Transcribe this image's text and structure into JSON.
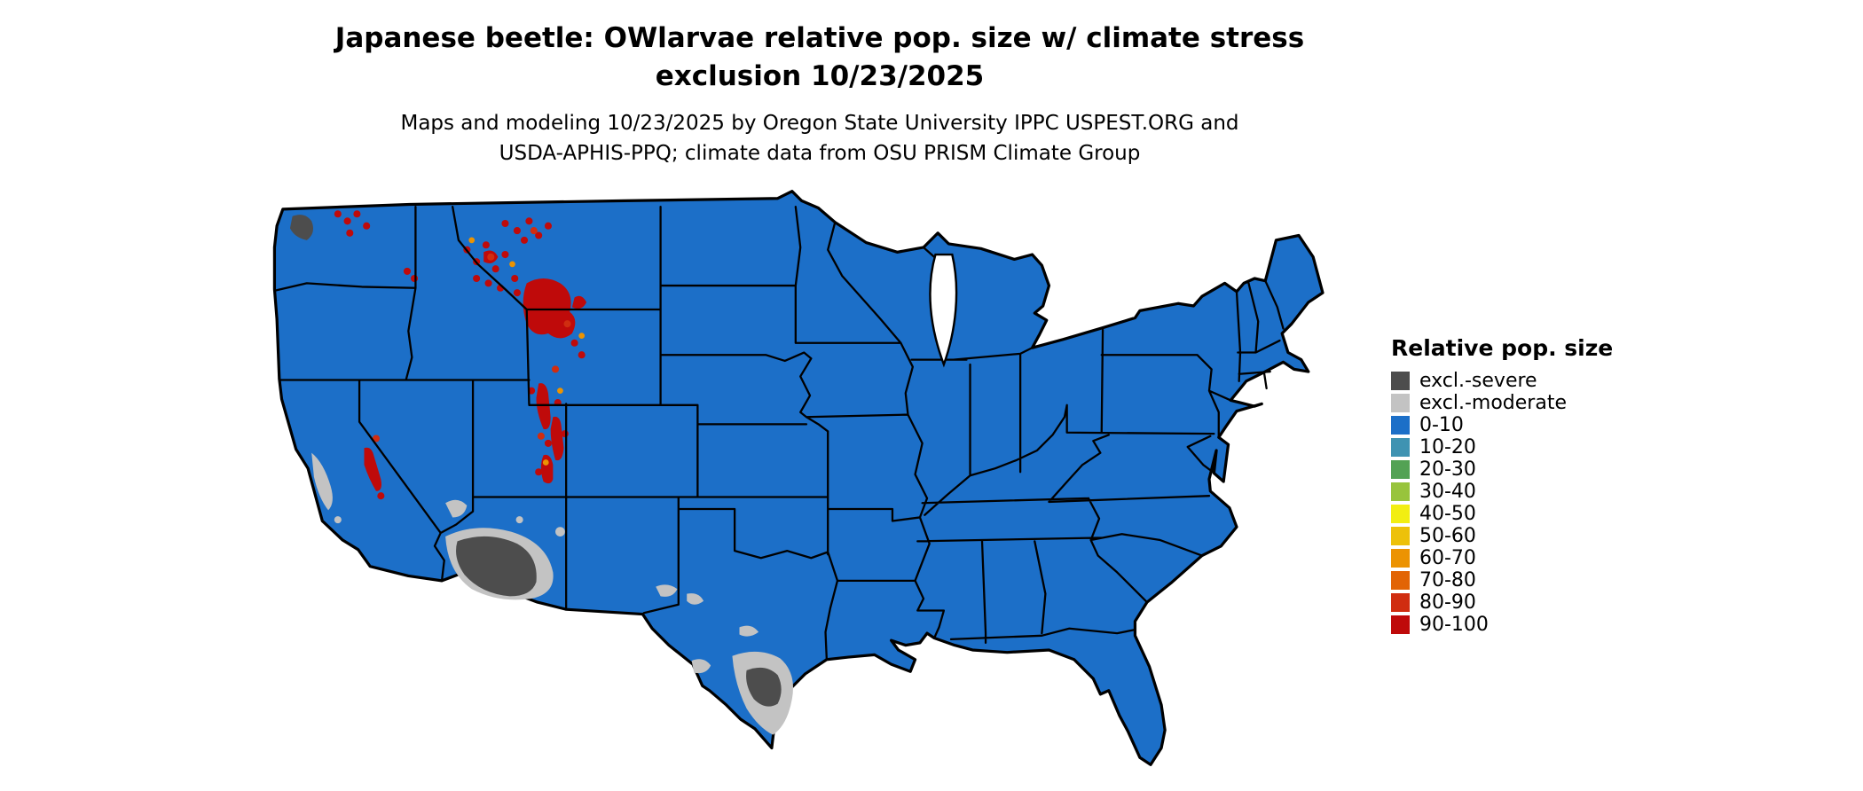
{
  "header": {
    "title_line1": "Japanese beetle: OWlarvae relative pop. size w/ climate stress",
    "title_line2": "exclusion 10/23/2025",
    "subtitle_line1": "Maps and modeling 10/23/2025 by Oregon State University IPPC USPEST.ORG and",
    "subtitle_line2": "USDA-APHIS-PPQ; climate data from OSU PRISM Climate Group"
  },
  "map": {
    "region": "Continental United States choropleth",
    "base_class": "0-10",
    "base_color": "#1c6fc8",
    "border_color": "#000000",
    "background_color": "#ffffff",
    "overlays": [
      {
        "area": "southwestern Arizona",
        "class": "excl.-severe"
      },
      {
        "area": "southern Texas along Rio Grande",
        "class": "excl.-severe"
      },
      {
        "area": "Olympic Peninsula, Washington",
        "class": "excl.-severe"
      },
      {
        "area": "fringes of Arizona and south Texas exclusion zones; central California; southern Nevada; southern New Mexico / west Texas",
        "class": "excl.-moderate"
      },
      {
        "area": "Greater Yellowstone / northwest Wyoming high elevations",
        "class": "90-100"
      },
      {
        "area": "Wasatch and central Utah mountains",
        "class": "90-100"
      },
      {
        "area": "Sierra Nevada crest, California",
        "class": "90-100"
      },
      {
        "area": "Idaho and western Montana mountain speckles",
        "class": "80-100"
      },
      {
        "area": "North Cascades, Washington",
        "class": "80-100"
      }
    ]
  },
  "legend": {
    "title": "Relative pop. size",
    "items": [
      {
        "label": "excl.-severe",
        "color": "#4d4d4d"
      },
      {
        "label": "excl.-moderate",
        "color": "#c3c3c3"
      },
      {
        "label": "0-10",
        "color": "#1c6fc8"
      },
      {
        "label": "10-20",
        "color": "#3f93b2"
      },
      {
        "label": "20-30",
        "color": "#53a254"
      },
      {
        "label": "30-40",
        "color": "#98c43c"
      },
      {
        "label": "40-50",
        "color": "#f2ee12"
      },
      {
        "label": "50-60",
        "color": "#edc10a"
      },
      {
        "label": "60-70",
        "color": "#ec9302"
      },
      {
        "label": "70-80",
        "color": "#e26405"
      },
      {
        "label": "80-90",
        "color": "#d02d10"
      },
      {
        "label": "90-100",
        "color": "#bf0a0a"
      }
    ]
  }
}
